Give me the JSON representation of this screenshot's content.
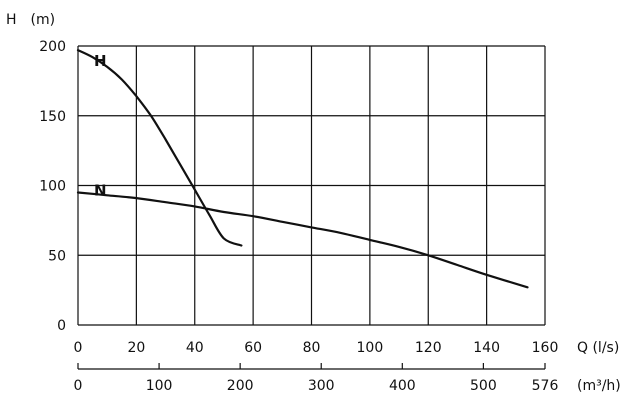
{
  "chart_data": {
    "type": "line",
    "ylabel": "H　(m)",
    "xlabel": "Q (l/s)",
    "x2label": "(m³/h)",
    "xlim": [
      0,
      160
    ],
    "ylim": [
      0,
      200
    ],
    "grid": true,
    "x_ticks": [
      0,
      20,
      40,
      60,
      80,
      100,
      120,
      140,
      160
    ],
    "y_ticks": [
      0,
      50,
      100,
      150,
      200
    ],
    "x2_ticks": [
      0,
      100,
      200,
      300,
      400,
      500,
      576
    ],
    "x2_max": 576,
    "series": [
      {
        "name": "H",
        "x": [
          0,
          5,
          10,
          15,
          20,
          25,
          30,
          35,
          40,
          45,
          50,
          56
        ],
        "y": [
          197,
          192,
          185,
          176,
          164,
          150,
          133,
          115,
          97,
          79,
          62,
          57
        ]
      },
      {
        "name": "N",
        "x": [
          0,
          10,
          20,
          30,
          40,
          50,
          60,
          70,
          80,
          90,
          100,
          110,
          120,
          130,
          140,
          154
        ],
        "y": [
          95,
          93,
          91,
          88,
          85,
          81,
          78,
          74,
          70,
          66,
          61,
          56,
          50,
          43,
          36,
          27
        ]
      }
    ],
    "colors": {
      "line": "#111111",
      "grid": "#111111"
    }
  }
}
